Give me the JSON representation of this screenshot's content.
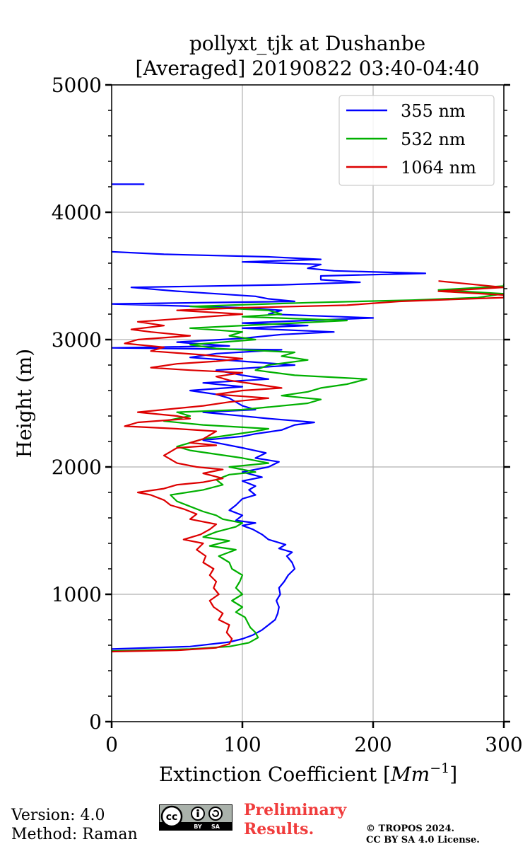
{
  "chart_data": {
    "type": "line",
    "title_line1": "pollyxt_tjk at Dushanbe",
    "title_line2": "[Averaged] 20190822 03:40-04:40",
    "xlabel": "Extinction Coefficient [Mm⁻¹]",
    "xlabel_main": "Extinction Coefficient [",
    "xlabel_unit": "Mm",
    "xlabel_exp": "−1",
    "xlabel_end": "]",
    "ylabel": "Height (m)",
    "xlim": [
      0,
      300
    ],
    "ylim": [
      0,
      5000
    ],
    "x_ticks": [
      0,
      100,
      200,
      300
    ],
    "x_tick_labels": [
      "0",
      "100",
      "200",
      "300"
    ],
    "y_ticks": [
      0,
      1000,
      2000,
      3000,
      4000,
      5000
    ],
    "y_tick_labels": [
      "0",
      "1000",
      "2000",
      "3000",
      "4000",
      "5000"
    ],
    "grid": true,
    "legend_position": "top-right",
    "series": [
      {
        "name": "355 nm",
        "color": "#0000ff",
        "points": [
          [
            0,
            570
          ],
          [
            60,
            590
          ],
          [
            90,
            625
          ],
          [
            100,
            650
          ],
          [
            108,
            680
          ],
          [
            115,
            720
          ],
          [
            120,
            760
          ],
          [
            125,
            800
          ],
          [
            127,
            850
          ],
          [
            128,
            900
          ],
          [
            126,
            950
          ],
          [
            129,
            1000
          ],
          [
            128,
            1050
          ],
          [
            132,
            1100
          ],
          [
            135,
            1150
          ],
          [
            140,
            1200
          ],
          [
            138,
            1250
          ],
          [
            134,
            1300
          ],
          [
            138,
            1330
          ],
          [
            128,
            1360
          ],
          [
            133,
            1390
          ],
          [
            120,
            1430
          ],
          [
            115,
            1470
          ],
          [
            108,
            1510
          ],
          [
            100,
            1540
          ],
          [
            110,
            1560
          ],
          [
            95,
            1580
          ],
          [
            100,
            1620
          ],
          [
            90,
            1660
          ],
          [
            95,
            1700
          ],
          [
            100,
            1750
          ],
          [
            110,
            1780
          ],
          [
            105,
            1820
          ],
          [
            110,
            1850
          ],
          [
            100,
            1890
          ],
          [
            115,
            1920
          ],
          [
            100,
            1960
          ],
          [
            120,
            2000
          ],
          [
            128,
            2040
          ],
          [
            110,
            2070
          ],
          [
            118,
            2110
          ],
          [
            100,
            2150
          ],
          [
            85,
            2180
          ],
          [
            70,
            2210
          ],
          [
            100,
            2240
          ],
          [
            110,
            2260
          ],
          [
            130,
            2290
          ],
          [
            140,
            2330
          ],
          [
            155,
            2350
          ],
          [
            120,
            2380
          ],
          [
            90,
            2410
          ],
          [
            70,
            2430
          ],
          [
            110,
            2450
          ],
          [
            100,
            2480
          ],
          [
            95,
            2510
          ],
          [
            90,
            2540
          ],
          [
            80,
            2570
          ],
          [
            60,
            2600
          ],
          [
            100,
            2630
          ],
          [
            70,
            2660
          ],
          [
            120,
            2690
          ],
          [
            100,
            2720
          ],
          [
            80,
            2760
          ],
          [
            140,
            2800
          ],
          [
            100,
            2830
          ],
          [
            60,
            2860
          ],
          [
            80,
            2890
          ],
          [
            130,
            2920
          ],
          [
            0,
            2935
          ],
          [
            90,
            2950
          ],
          [
            50,
            2980
          ],
          [
            100,
            3010
          ],
          [
            130,
            3040
          ],
          [
            170,
            3060
          ],
          [
            100,
            3090
          ],
          [
            150,
            3110
          ],
          [
            100,
            3130
          ],
          [
            200,
            3170
          ],
          [
            120,
            3200
          ],
          [
            130,
            3230
          ],
          [
            100,
            3250
          ],
          [
            0,
            3280
          ],
          [
            140,
            3300
          ],
          [
            120,
            3320
          ],
          [
            110,
            3340
          ],
          [
            50,
            3380
          ],
          [
            15,
            3410
          ],
          [
            130,
            3430
          ],
          [
            190,
            3450
          ],
          [
            160,
            3470
          ],
          [
            160,
            3500
          ],
          [
            240,
            3520
          ],
          [
            170,
            3540
          ],
          [
            150,
            3560
          ],
          [
            160,
            3590
          ],
          [
            100,
            3610
          ],
          [
            160,
            3630
          ],
          [
            120,
            3650
          ],
          [
            40,
            3670
          ],
          [
            0,
            3690
          ]
        ]
      },
      {
        "name": "532 nm",
        "color": "#00b000",
        "points": [
          [
            0,
            555
          ],
          [
            60,
            570
          ],
          [
            90,
            590
          ],
          [
            105,
            620
          ],
          [
            112,
            660
          ],
          [
            110,
            700
          ],
          [
            106,
            740
          ],
          [
            104,
            780
          ],
          [
            102,
            820
          ],
          [
            95,
            860
          ],
          [
            100,
            900
          ],
          [
            92,
            950
          ],
          [
            100,
            1000
          ],
          [
            95,
            1050
          ],
          [
            98,
            1100
          ],
          [
            100,
            1150
          ],
          [
            92,
            1200
          ],
          [
            90,
            1250
          ],
          [
            82,
            1300
          ],
          [
            95,
            1350
          ],
          [
            75,
            1380
          ],
          [
            90,
            1420
          ],
          [
            70,
            1450
          ],
          [
            80,
            1490
          ],
          [
            95,
            1530
          ],
          [
            100,
            1560
          ],
          [
            85,
            1590
          ],
          [
            80,
            1620
          ],
          [
            70,
            1650
          ],
          [
            60,
            1690
          ],
          [
            50,
            1730
          ],
          [
            45,
            1780
          ],
          [
            70,
            1820
          ],
          [
            85,
            1860
          ],
          [
            80,
            1900
          ],
          [
            90,
            1940
          ],
          [
            110,
            1960
          ],
          [
            90,
            2000
          ],
          [
            120,
            2030
          ],
          [
            100,
            2070
          ],
          [
            80,
            2100
          ],
          [
            60,
            2130
          ],
          [
            50,
            2160
          ],
          [
            60,
            2190
          ],
          [
            70,
            2220
          ],
          [
            90,
            2250
          ],
          [
            110,
            2280
          ],
          [
            120,
            2300
          ],
          [
            70,
            2330
          ],
          [
            40,
            2360
          ],
          [
            60,
            2400
          ],
          [
            50,
            2430
          ],
          [
            100,
            2450
          ],
          [
            120,
            2470
          ],
          [
            150,
            2500
          ],
          [
            160,
            2530
          ],
          [
            130,
            2560
          ],
          [
            150,
            2590
          ],
          [
            160,
            2620
          ],
          [
            180,
            2650
          ],
          [
            195,
            2690
          ],
          [
            140,
            2720
          ],
          [
            110,
            2760
          ],
          [
            120,
            2800
          ],
          [
            150,
            2840
          ],
          [
            130,
            2870
          ],
          [
            140,
            2900
          ],
          [
            80,
            2930
          ],
          [
            60,
            2960
          ],
          [
            110,
            3000
          ],
          [
            90,
            3030
          ],
          [
            100,
            3060
          ],
          [
            60,
            3090
          ],
          [
            120,
            3120
          ],
          [
            180,
            3150
          ],
          [
            100,
            3180
          ],
          [
            130,
            3200
          ],
          [
            120,
            3230
          ],
          [
            60,
            3260
          ],
          [
            150,
            3290
          ],
          [
            230,
            3310
          ],
          [
            280,
            3330
          ],
          [
            300,
            3360
          ],
          [
            250,
            3390
          ],
          [
            300,
            3420
          ],
          [
            300,
            3440
          ]
        ]
      },
      {
        "name": "1064 nm",
        "color": "#dd0000",
        "points": [
          [
            0,
            550
          ],
          [
            50,
            560
          ],
          [
            80,
            580
          ],
          [
            90,
            610
          ],
          [
            92,
            650
          ],
          [
            88,
            700
          ],
          [
            90,
            760
          ],
          [
            82,
            800
          ],
          [
            85,
            850
          ],
          [
            78,
            900
          ],
          [
            75,
            950
          ],
          [
            82,
            1000
          ],
          [
            78,
            1050
          ],
          [
            80,
            1100
          ],
          [
            75,
            1150
          ],
          [
            78,
            1200
          ],
          [
            70,
            1250
          ],
          [
            72,
            1300
          ],
          [
            65,
            1350
          ],
          [
            70,
            1400
          ],
          [
            55,
            1430
          ],
          [
            68,
            1470
          ],
          [
            75,
            1510
          ],
          [
            80,
            1550
          ],
          [
            60,
            1590
          ],
          [
            65,
            1630
          ],
          [
            55,
            1670
          ],
          [
            45,
            1700
          ],
          [
            40,
            1740
          ],
          [
            30,
            1780
          ],
          [
            20,
            1800
          ],
          [
            40,
            1830
          ],
          [
            50,
            1860
          ],
          [
            70,
            1880
          ],
          [
            85,
            1910
          ],
          [
            70,
            1950
          ],
          [
            85,
            1980
          ],
          [
            65,
            2000
          ],
          [
            50,
            2030
          ],
          [
            45,
            2060
          ],
          [
            40,
            2090
          ],
          [
            45,
            2120
          ],
          [
            50,
            2150
          ],
          [
            80,
            2170
          ],
          [
            60,
            2190
          ],
          [
            70,
            2220
          ],
          [
            75,
            2250
          ],
          [
            80,
            2280
          ],
          [
            50,
            2300
          ],
          [
            10,
            2320
          ],
          [
            20,
            2350
          ],
          [
            60,
            2380
          ],
          [
            50,
            2400
          ],
          [
            20,
            2430
          ],
          [
            40,
            2450
          ],
          [
            70,
            2480
          ],
          [
            90,
            2510
          ],
          [
            120,
            2540
          ],
          [
            80,
            2570
          ],
          [
            100,
            2600
          ],
          [
            130,
            2620
          ],
          [
            110,
            2650
          ],
          [
            90,
            2680
          ],
          [
            80,
            2710
          ],
          [
            100,
            2740
          ],
          [
            60,
            2760
          ],
          [
            30,
            2780
          ],
          [
            50,
            2810
          ],
          [
            80,
            2830
          ],
          [
            100,
            2850
          ],
          [
            70,
            2880
          ],
          [
            30,
            2910
          ],
          [
            40,
            2940
          ],
          [
            10,
            2970
          ],
          [
            20,
            3000
          ],
          [
            60,
            3030
          ],
          [
            30,
            3060
          ],
          [
            15,
            3080
          ],
          [
            40,
            3110
          ],
          [
            20,
            3140
          ],
          [
            60,
            3170
          ],
          [
            100,
            3200
          ],
          [
            50,
            3230
          ],
          [
            100,
            3250
          ],
          [
            180,
            3270
          ],
          [
            220,
            3300
          ],
          [
            300,
            3330
          ],
          [
            300,
            3350
          ],
          [
            250,
            3380
          ],
          [
            300,
            3410
          ],
          [
            270,
            3440
          ],
          [
            250,
            3460
          ]
        ]
      }
    ],
    "isolated_segment": {
      "series": "355 nm",
      "x0": 0,
      "x1": 25,
      "y": 4220
    }
  },
  "footer": {
    "version": "Version: 4.0",
    "method": "Method: Raman",
    "preliminary_line1": "Preliminary",
    "preliminary_line2": "Results.",
    "copyright_line1": "© TROPOS 2024.",
    "copyright_line2": "CC BY SA 4.0 License.",
    "cc_label": "cc",
    "by_label": "BY",
    "sa_label": "SA"
  }
}
